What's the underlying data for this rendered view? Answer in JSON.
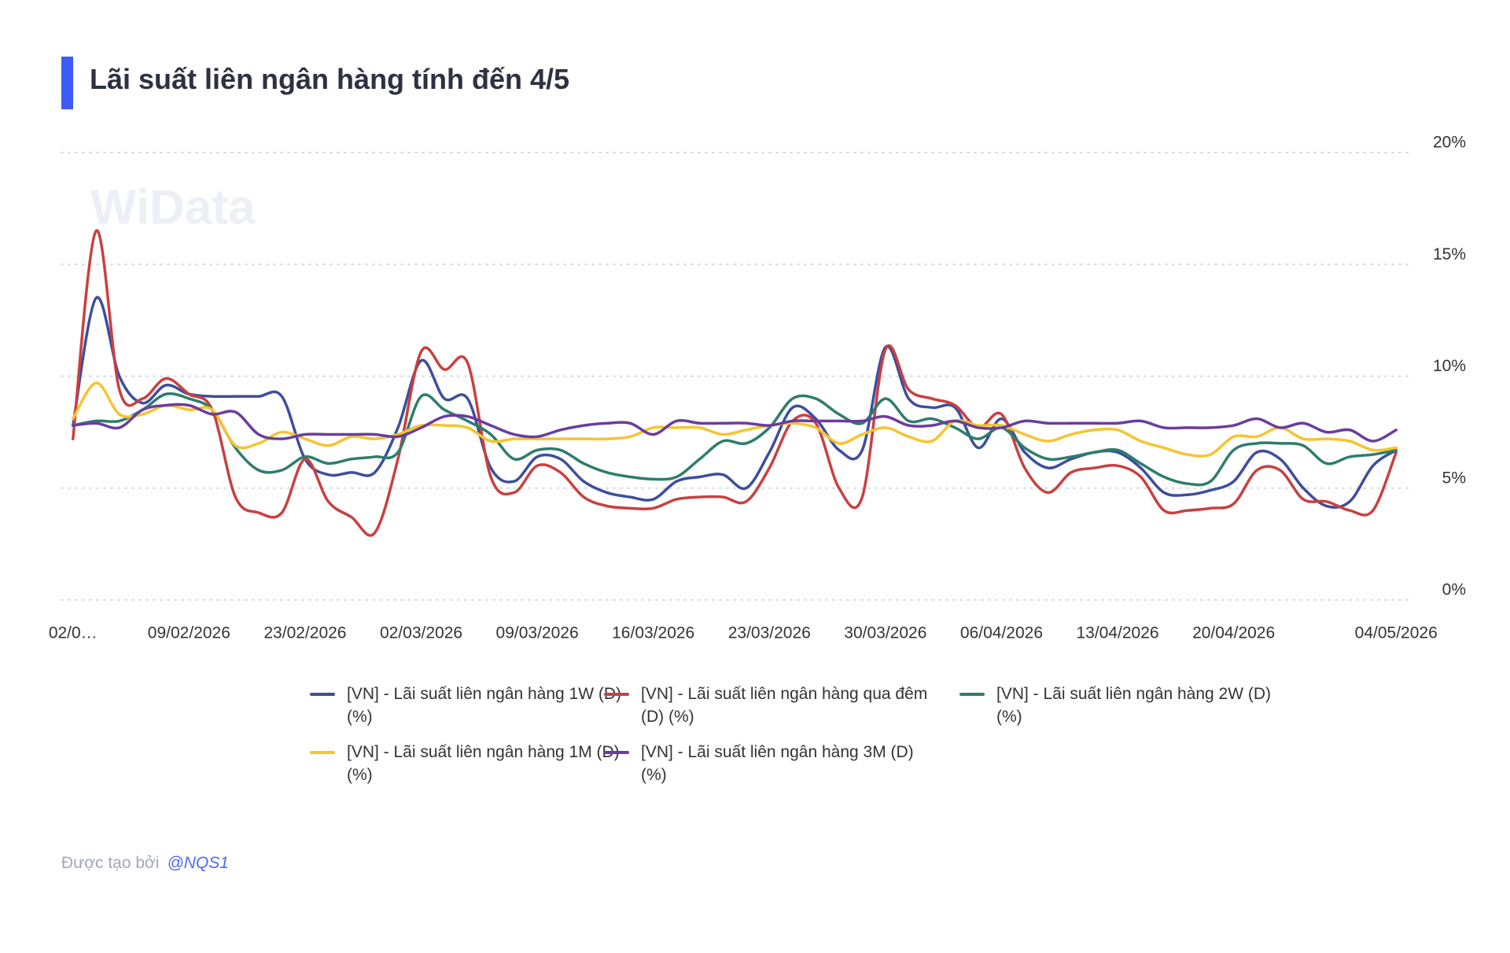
{
  "chart_data": {
    "type": "line",
    "title": "Lãi suất liên ngân hàng tính đến 4/5",
    "watermark": "WiData",
    "footer": "Được tạo bởi",
    "author": "@NQS1",
    "categories": [
      "02/0…",
      null,
      null,
      null,
      null,
      "09/02/2026",
      null,
      null,
      null,
      null,
      "23/02/2026",
      null,
      null,
      null,
      null,
      "02/03/2026",
      null,
      null,
      null,
      null,
      "09/03/2026",
      null,
      null,
      null,
      null,
      "16/03/2026",
      null,
      null,
      null,
      null,
      "23/03/2026",
      null,
      null,
      null,
      null,
      "30/03/2026",
      null,
      null,
      null,
      null,
      "06/04/2026",
      null,
      null,
      null,
      null,
      "13/04/2026",
      null,
      null,
      null,
      null,
      "20/04/2026",
      null,
      null,
      null,
      null,
      null,
      null,
      "04/05/2026"
    ],
    "ylim": [
      0,
      20
    ],
    "yticks": [
      {
        "value": 0,
        "label": "0%"
      },
      {
        "value": 5,
        "label": "5%"
      },
      {
        "value": 10,
        "label": "10%"
      },
      {
        "value": 15,
        "label": "15%"
      },
      {
        "value": 20,
        "label": "20%"
      }
    ],
    "grid": true,
    "legend": "bottom",
    "series": [
      {
        "name": "[VN] - Lãi suất liên ngân hàng 1W (D) (%)",
        "color": "#3d4e9c",
        "values": [
          7.8,
          13.5,
          10.0,
          8.8,
          9.6,
          9.2,
          9.1,
          9.1,
          9.1,
          9.1,
          6.3,
          5.6,
          5.7,
          5.7,
          7.7,
          10.7,
          9.0,
          9.0,
          5.9,
          5.3,
          6.4,
          6.3,
          5.3,
          4.8,
          4.6,
          4.5,
          5.3,
          5.5,
          5.6,
          5.0,
          6.6,
          8.6,
          8.1,
          6.7,
          6.7,
          11.3,
          9.0,
          8.6,
          8.6,
          6.8,
          8.1,
          6.6,
          5.9,
          6.3,
          6.6,
          6.6,
          5.9,
          4.8,
          4.7,
          4.9,
          5.3,
          6.6,
          6.3,
          5.0,
          4.2,
          4.4,
          6.0,
          6.7
        ]
      },
      {
        "name": "[VN] - Lãi suất liên ngân hàng qua đêm (D) (%)",
        "color": "#c94040",
        "values": [
          7.2,
          16.5,
          9.4,
          9.0,
          9.9,
          9.2,
          8.5,
          4.6,
          3.9,
          3.9,
          6.3,
          4.4,
          3.7,
          3.0,
          6.3,
          11.1,
          10.3,
          10.6,
          5.5,
          4.8,
          6.0,
          5.7,
          4.6,
          4.2,
          4.1,
          4.1,
          4.5,
          4.6,
          4.6,
          4.4,
          5.9,
          8.0,
          7.9,
          5.0,
          4.6,
          11.2,
          9.4,
          9.0,
          8.7,
          7.7,
          8.3,
          5.9,
          4.8,
          5.7,
          5.9,
          6.0,
          5.5,
          4.0,
          4.0,
          4.1,
          4.3,
          5.8,
          5.8,
          4.5,
          4.4,
          4.0,
          4.0,
          6.6
        ]
      },
      {
        "name": "[VN] - Lãi suất liên ngân hàng 2W (D) (%)",
        "color": "#2e7d6b",
        "values": [
          7.8,
          8.0,
          8.0,
          8.5,
          9.2,
          9.0,
          8.5,
          6.8,
          5.8,
          5.8,
          6.4,
          6.1,
          6.3,
          6.4,
          6.6,
          9.1,
          8.5,
          8.0,
          7.4,
          6.3,
          6.7,
          6.7,
          6.1,
          5.7,
          5.5,
          5.4,
          5.5,
          6.3,
          7.1,
          7.0,
          7.7,
          9.0,
          9.0,
          8.3,
          7.9,
          9.0,
          8.0,
          8.1,
          7.7,
          7.2,
          7.7,
          6.8,
          6.3,
          6.4,
          6.6,
          6.7,
          6.1,
          5.5,
          5.2,
          5.3,
          6.7,
          7.0,
          7.0,
          6.9,
          6.1,
          6.4,
          6.5,
          6.7
        ]
      },
      {
        "name": "[VN] - Lãi suất liên ngân hàng 1M (D) (%)",
        "color": "#f5c431",
        "values": [
          8.1,
          9.7,
          8.3,
          8.3,
          8.7,
          8.5,
          8.5,
          6.9,
          7.0,
          7.5,
          7.2,
          6.9,
          7.3,
          7.2,
          7.4,
          7.8,
          7.8,
          7.7,
          7.1,
          7.2,
          7.2,
          7.2,
          7.2,
          7.2,
          7.3,
          7.7,
          7.7,
          7.7,
          7.4,
          7.6,
          7.8,
          7.9,
          7.7,
          7.0,
          7.4,
          7.7,
          7.3,
          7.1,
          8.0,
          7.8,
          7.8,
          7.4,
          7.1,
          7.4,
          7.6,
          7.6,
          7.1,
          6.8,
          6.5,
          6.5,
          7.3,
          7.3,
          7.7,
          7.2,
          7.2,
          7.1,
          6.7,
          6.8
        ]
      },
      {
        "name": "[VN] - Lãi suất liên ngân hàng 3M (D) (%)",
        "color": "#6a3d9e",
        "values": [
          7.8,
          7.9,
          7.7,
          8.5,
          8.7,
          8.7,
          8.3,
          8.4,
          7.4,
          7.2,
          7.4,
          7.4,
          7.4,
          7.4,
          7.3,
          7.7,
          8.2,
          8.2,
          7.8,
          7.4,
          7.3,
          7.6,
          7.8,
          7.9,
          7.9,
          7.4,
          8.0,
          7.9,
          7.9,
          7.9,
          7.8,
          8.0,
          8.0,
          8.0,
          8.0,
          8.2,
          7.8,
          7.8,
          8.0,
          7.7,
          7.7,
          8.0,
          7.9,
          7.9,
          7.9,
          7.9,
          8.0,
          7.7,
          7.7,
          7.7,
          7.8,
          8.1,
          7.7,
          7.9,
          7.5,
          7.6,
          7.1,
          7.6
        ]
      }
    ]
  }
}
